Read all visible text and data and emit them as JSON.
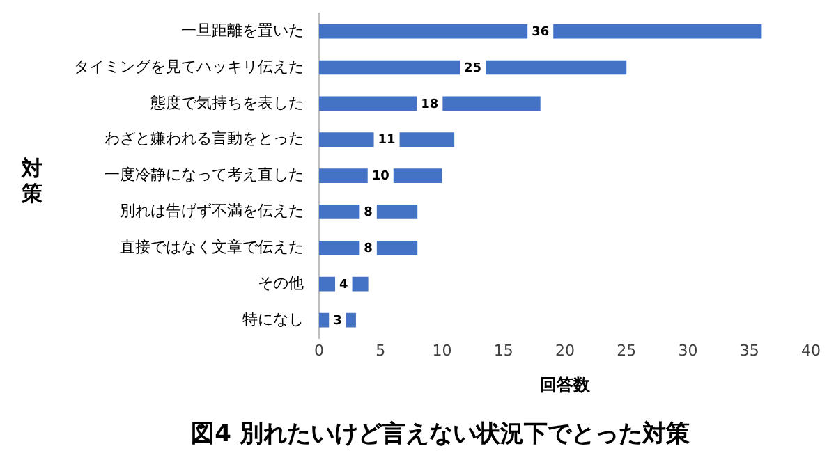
{
  "chart_data": {
    "type": "bar",
    "orientation": "horizontal",
    "title": "図4 別れたいけど言えない状況下でとった対策",
    "xlabel": "回答数",
    "ylabel": "対策",
    "categories": [
      "一旦距離を置いた",
      "タイミングを見てハッキリ伝えた",
      "態度で気持ちを表した",
      "わざと嫌われる言動をとった",
      "一度冷静になって考え直した",
      "別れは告げず不満を伝えた",
      "直接ではなく文章で伝えた",
      "その他",
      "特になし"
    ],
    "values": [
      36,
      25,
      18,
      11,
      10,
      8,
      8,
      4,
      3
    ],
    "color": "#4472c4",
    "xlim": [
      0,
      40
    ],
    "xticks": [
      0,
      5,
      10,
      15,
      20,
      25,
      30,
      35,
      40
    ],
    "grid": false,
    "legend": false,
    "data_labels": true
  }
}
